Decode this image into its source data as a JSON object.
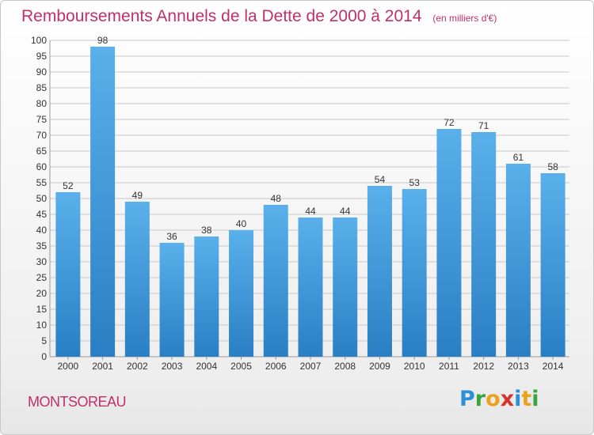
{
  "header": {
    "title": "Remboursements Annuels de la Dette de 2000 à 2014",
    "unit": "(en milliers d'€)"
  },
  "footer": {
    "city": "MONTSOREAU",
    "brand_letters": [
      {
        "ch": "P",
        "color": "#2e8fd6"
      },
      {
        "ch": "r",
        "color": "#3aa53a"
      },
      {
        "ch": "o",
        "color": "#e8a21c"
      },
      {
        "ch": "x",
        "color": "#d8322e"
      },
      {
        "ch": "i",
        "color": "#2e8fd6"
      },
      {
        "ch": "t",
        "color": "#e8a21c"
      },
      {
        "ch": "i",
        "color": "#3aa53a"
      }
    ]
  },
  "colors": {
    "title": "#c0306a",
    "bar_top": "#5ab0ea",
    "bar_bottom": "#2a7fc4",
    "grid": "#c8c8c8",
    "axis_text": "#333333"
  },
  "chart_data": {
    "type": "bar",
    "title": "Remboursements Annuels de la Dette de 2000 à 2014",
    "subtitle": "(en milliers d'€)",
    "categories": [
      "2000",
      "2001",
      "2002",
      "2003",
      "2004",
      "2005",
      "2006",
      "2007",
      "2008",
      "2009",
      "2010",
      "2011",
      "2012",
      "2013",
      "2014"
    ],
    "values": [
      52,
      98,
      49,
      36,
      38,
      40,
      48,
      44,
      44,
      54,
      53,
      72,
      71,
      61,
      58
    ],
    "ylim": [
      0,
      100
    ],
    "ytick_step": 5,
    "grid": true,
    "xlabel": "",
    "ylabel": ""
  }
}
